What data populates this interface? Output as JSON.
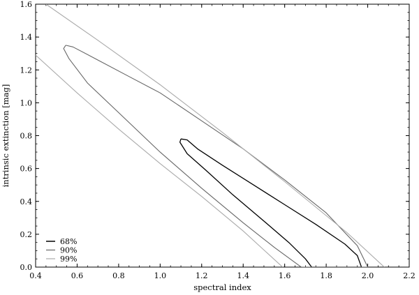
{
  "chart_data": {
    "type": "line",
    "title": "",
    "xlabel": "spectral index",
    "ylabel": "intrinsic extinction [mag]",
    "xlim": [
      0.4,
      2.2
    ],
    "ylim": [
      0.0,
      1.6
    ],
    "xticks": [
      "0.4",
      "0.6",
      "0.8",
      "1.0",
      "1.2",
      "1.4",
      "1.6",
      "1.8",
      "2.0",
      "2.2"
    ],
    "yticks": [
      "0.0",
      "0.2",
      "0.4",
      "0.6",
      "0.8",
      "1.0",
      "1.2",
      "1.4",
      "1.6"
    ],
    "grid": false,
    "legend_position": "bottom-left",
    "series": [
      {
        "name": "68%",
        "color": "#000000",
        "points": [
          [
            1.1,
            0.78
          ],
          [
            1.13,
            0.774
          ],
          [
            1.18,
            0.72
          ],
          [
            1.3,
            0.62
          ],
          [
            1.45,
            0.5
          ],
          [
            1.6,
            0.38
          ],
          [
            1.75,
            0.26
          ],
          [
            1.89,
            0.14
          ],
          [
            1.95,
            0.07
          ],
          [
            1.97,
            0.0
          ],
          [
            1.73,
            0.0
          ],
          [
            1.7,
            0.05
          ],
          [
            1.62,
            0.15
          ],
          [
            1.5,
            0.28
          ],
          [
            1.35,
            0.44
          ],
          [
            1.22,
            0.59
          ],
          [
            1.13,
            0.69
          ],
          [
            1.095,
            0.76
          ],
          [
            1.1,
            0.78
          ]
        ]
      },
      {
        "name": "90%",
        "color": "#666666",
        "points": [
          [
            0.545,
            1.35
          ],
          [
            0.58,
            1.34
          ],
          [
            0.7,
            1.26
          ],
          [
            0.85,
            1.16
          ],
          [
            1.0,
            1.06
          ],
          [
            1.2,
            0.89
          ],
          [
            1.4,
            0.72
          ],
          [
            1.6,
            0.53
          ],
          [
            1.8,
            0.33
          ],
          [
            1.95,
            0.13
          ],
          [
            2.0,
            0.0
          ],
          [
            1.68,
            0.0
          ],
          [
            1.55,
            0.12
          ],
          [
            1.4,
            0.27
          ],
          [
            1.2,
            0.48
          ],
          [
            1.0,
            0.7
          ],
          [
            0.8,
            0.94
          ],
          [
            0.65,
            1.12
          ],
          [
            0.56,
            1.27
          ],
          [
            0.535,
            1.33
          ],
          [
            0.545,
            1.35
          ]
        ]
      },
      {
        "name": "99%",
        "color": "#aaaaaa",
        "points_upper": [
          [
            0.45,
            1.6
          ],
          [
            0.7,
            1.38
          ],
          [
            1.0,
            1.11
          ],
          [
            1.3,
            0.82
          ],
          [
            1.6,
            0.52
          ],
          [
            1.9,
            0.21
          ],
          [
            2.08,
            0.0
          ]
        ],
        "points_lower": [
          [
            0.4,
            1.29
          ],
          [
            0.6,
            1.06
          ],
          [
            0.8,
            0.84
          ],
          [
            1.0,
            0.63
          ],
          [
            1.2,
            0.43
          ],
          [
            1.4,
            0.22
          ],
          [
            1.59,
            0.0
          ]
        ]
      }
    ]
  }
}
